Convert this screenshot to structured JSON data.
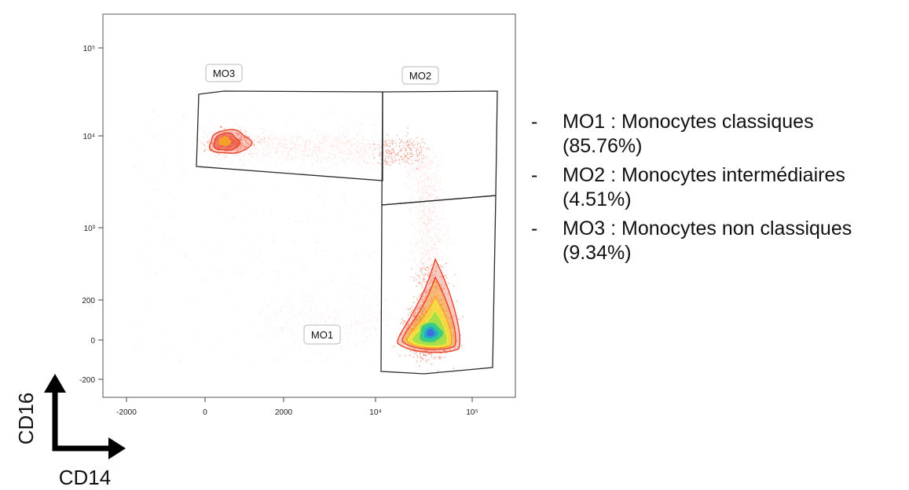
{
  "chart_data": {
    "type": "scatter",
    "plot_kind": "flow-cytometry density dot plot",
    "x_axis": {
      "label": "CD14",
      "scale": "biexponential",
      "tick_labels": [
        "-2000",
        "0",
        "2000",
        "10⁴",
        "10⁵"
      ],
      "range": [
        -2000,
        200000
      ]
    },
    "y_axis": {
      "label": "CD16",
      "scale": "biexponential",
      "tick_labels": [
        "-200",
        "0",
        "200",
        "10³",
        "10⁴",
        "10⁵"
      ],
      "range": [
        -300,
        200000
      ]
    },
    "gates": [
      {
        "name": "MO1",
        "x_range": [
          12000,
          150000
        ],
        "y_range": [
          -300,
          2000
        ]
      },
      {
        "name": "MO2",
        "x_range": [
          12000,
          150000
        ],
        "y_range": [
          2000,
          30000
        ]
      },
      {
        "name": "MO3",
        "x_range": [
          -200,
          12000
        ],
        "y_range": [
          3500,
          30000
        ]
      }
    ],
    "populations": [
      {
        "gate": "MO1",
        "name": "Monocytes classiques",
        "percent": 85.76
      },
      {
        "gate": "MO2",
        "name": "Monocytes intermédiaires",
        "percent": 4.51
      },
      {
        "gate": "MO3",
        "name": "Monocytes non classiques",
        "percent": 9.34
      }
    ],
    "density_colormap": [
      "#ffd6d0",
      "#f26a4f",
      "#e8442a",
      "#f5a623",
      "#f7e83a",
      "#9be04a",
      "#35c98a",
      "#1fa4d8"
    ],
    "grid": false,
    "legend_placement": "right"
  },
  "legend": {
    "dash": "-",
    "items": [
      {
        "line1": "MO1 : Monocytes classiques",
        "line2": "(85.76%)"
      },
      {
        "line1": "MO2 : Monocytes intermédiaires",
        "line2": "(4.51%)"
      },
      {
        "line1": "MO3 : Monocytes non classiques",
        "line2": "(9.34%)"
      }
    ]
  }
}
